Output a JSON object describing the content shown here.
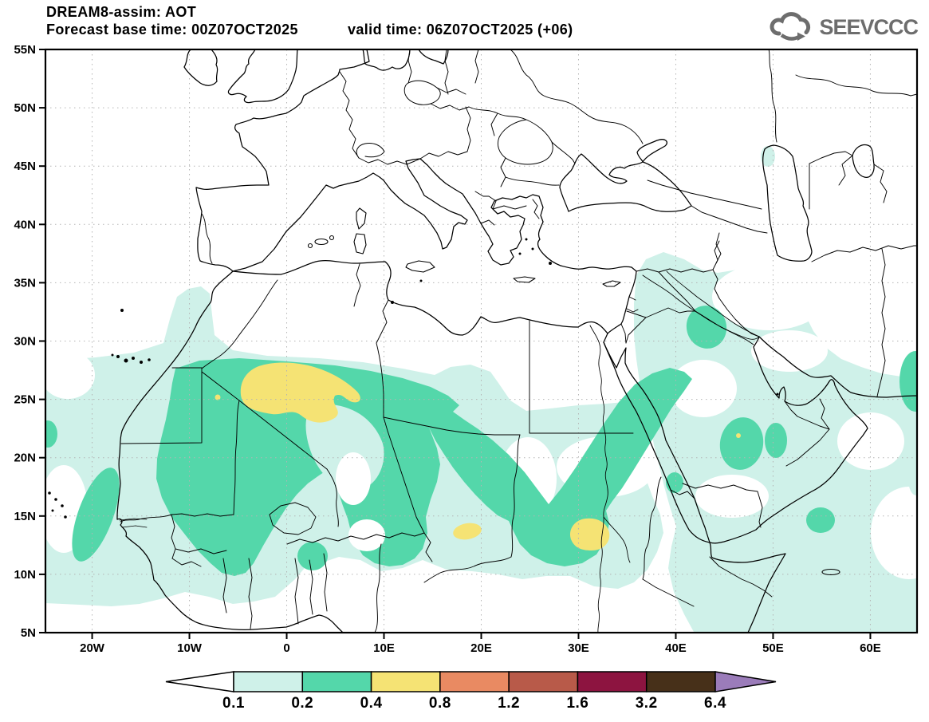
{
  "header": {
    "title": "DREAM8-assim: AOT",
    "forecast_base": "Forecast base time: 00Z07OCT2025",
    "valid_time": "valid time: 06Z07OCT2025 (+06)",
    "logo_text": "SEEVCCC"
  },
  "palette": {
    "bg": "#ffffff",
    "aot01": "#cff1e9",
    "aot02": "#54d7aa",
    "aot04": "#f5e374",
    "aot08": "#e98a62",
    "aot12": "#b85a49",
    "aot16": "#8d1440",
    "aot32": "#473019",
    "aot64_over": "#9b7cba",
    "grid": "#b4b4b4",
    "logo_gray": "#6d6d6d"
  },
  "axes": {
    "x_ticks": [
      {
        "label": "20W",
        "lon": -20
      },
      {
        "label": "10W",
        "lon": -10
      },
      {
        "label": "0",
        "lon": 0
      },
      {
        "label": "10E",
        "lon": 10
      },
      {
        "label": "20E",
        "lon": 20
      },
      {
        "label": "30E",
        "lon": 30
      },
      {
        "label": "40E",
        "lon": 40
      },
      {
        "label": "50E",
        "lon": 50
      },
      {
        "label": "60E",
        "lon": 60
      }
    ],
    "y_ticks": [
      {
        "label": "5N",
        "lat": 5
      },
      {
        "label": "10N",
        "lat": 10
      },
      {
        "label": "15N",
        "lat": 15
      },
      {
        "label": "20N",
        "lat": 20
      },
      {
        "label": "25N",
        "lat": 25
      },
      {
        "label": "30N",
        "lat": 30
      },
      {
        "label": "35N",
        "lat": 35
      },
      {
        "label": "40N",
        "lat": 40
      },
      {
        "label": "45N",
        "lat": 45
      },
      {
        "label": "50N",
        "lat": 50
      },
      {
        "label": "55N",
        "lat": 55
      }
    ]
  },
  "colorbar": {
    "boundary_labels": [
      "0.1",
      "0.2",
      "0.4",
      "0.8",
      "1.2",
      "1.6",
      "3.2",
      "6.4"
    ],
    "segments": [
      {
        "range": "<0.1",
        "color": "#ffffff",
        "shape": "left-arrow"
      },
      {
        "range": "0.1-0.2",
        "color": "#cff1e9"
      },
      {
        "range": "0.2-0.4",
        "color": "#54d7aa"
      },
      {
        "range": "0.4-0.8",
        "color": "#f5e374"
      },
      {
        "range": "0.8-1.2",
        "color": "#e98a62"
      },
      {
        "range": "1.2-1.6",
        "color": "#b85a49"
      },
      {
        "range": "1.6-3.2",
        "color": "#8d1440"
      },
      {
        "range": "3.2-6.4",
        "color": "#473019"
      },
      {
        "range": ">6.4",
        "color": "#9b7cba",
        "shape": "right-arrow"
      }
    ]
  },
  "chart_data": {
    "type": "filled_contour_map",
    "title": "DREAM8-assim: AOT",
    "variable": "AOT (aerosol optical thickness)",
    "model": "DREAM8-assim",
    "forecast_base_time": "00Z07OCT2025",
    "valid_time": "06Z07OCT2025",
    "forecast_step": "+06",
    "extent": {
      "lon_min": -24.8,
      "lon_max": 64.8,
      "lat_min": 5,
      "lat_max": 55
    },
    "grid": {
      "lon_step_deg": 10,
      "lat_step_deg": 5,
      "style": "dotted"
    },
    "contour_levels": [
      0.1,
      0.2,
      0.4,
      0.8,
      1.2,
      1.6,
      3.2,
      6.4
    ],
    "legend_position": "bottom",
    "features": [
      {
        "region": "N Mali / S Algeria Sahara maximum",
        "value_bin": "0.4-0.8",
        "center": {
          "lon": 1.5,
          "lat": 26
        }
      },
      {
        "region": "West Africa / Mauritania-Senegal dust band",
        "value_bin": "0.2-0.4",
        "center": {
          "lon": -9,
          "lat": 20
        }
      },
      {
        "region": "Atlantic offshore band (Cape Verde area)",
        "value_bin": "0.1-0.4",
        "center": {
          "lon": -21,
          "lat": 17
        }
      },
      {
        "region": "Chad-Sudan arc up to Red Sea",
        "value_bin": "0.2-0.4",
        "center": {
          "lon": 26,
          "lat": 16
        }
      },
      {
        "region": "Chad hotspot",
        "value_bin": "0.4-0.8",
        "center": {
          "lon": 18.5,
          "lat": 13.5
        }
      },
      {
        "region": "Sudan hotspot",
        "value_bin": "0.4-0.8",
        "center": {
          "lon": 31,
          "lat": 13
        }
      },
      {
        "region": "Northern Saudi Arabia patch",
        "value_bin": "0.2-0.4",
        "center": {
          "lon": 43,
          "lat": 31
        }
      },
      {
        "region": "Central Saudi Arabia patches (tiny 0.4-0.8 speck)",
        "value_bin": "0.2-0.4",
        "center": {
          "lon": 46.5,
          "lat": 21.5
        }
      },
      {
        "region": "Arabian Peninsula background",
        "value_bin": "0.1-0.2",
        "center": {
          "lon": 47,
          "lat": 20
        }
      },
      {
        "region": "Syria / N Levant patch",
        "value_bin": "0.1-0.2",
        "center": {
          "lon": 39,
          "lat": 34.5
        }
      },
      {
        "region": "Gulf of Aden patch",
        "value_bin": "0.2-0.4",
        "center": {
          "lon": 50,
          "lat": 14.5
        }
      },
      {
        "region": "SE Iran / Makran edge patch",
        "value_bin": "0.2-0.4",
        "center": {
          "lon": 64,
          "lat": 26.5
        }
      },
      {
        "region": "Europe and Mediterranean",
        "value_bin": "<0.1 (clear)",
        "center": {
          "lon": 15,
          "lat": 45
        }
      }
    ]
  }
}
